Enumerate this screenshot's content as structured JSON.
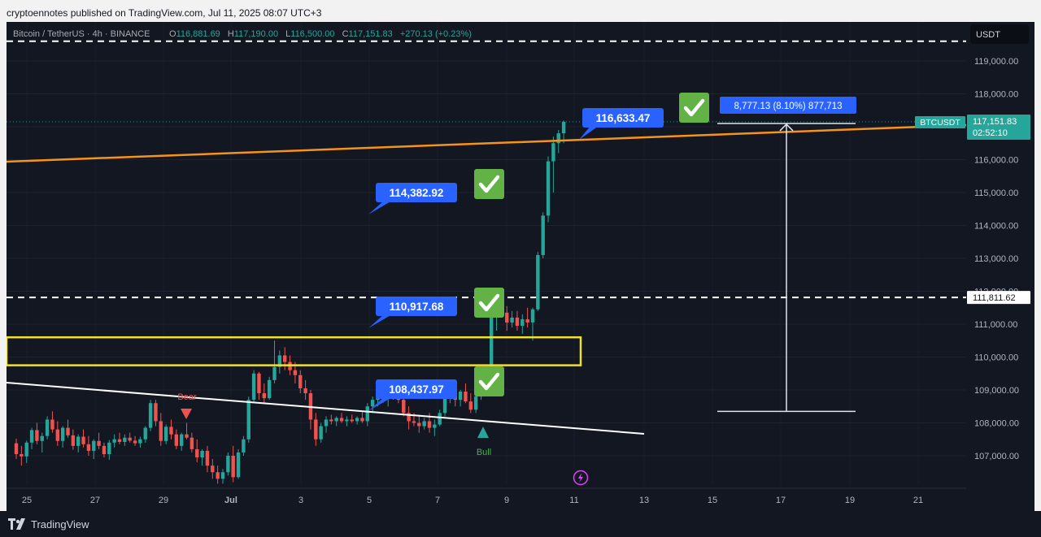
{
  "publisher_line": "cryptoennotes published on TradingView.com, Jul 11, 2025 08:07 UTC+3",
  "legend": {
    "symbol": "Bitcoin / TetherUS · 4h · BINANCE",
    "o_label": "O",
    "o_value": "116,881.69",
    "h_label": "H",
    "h_value": "117,190.00",
    "l_label": "L",
    "l_value": "116,500.00",
    "c_label": "C",
    "c_value": "117,151.83",
    "change": "+270.13 (+0.23%)"
  },
  "currency_button": "USDT",
  "price_axis": {
    "ticks": [
      "119,000.00",
      "118,000.00",
      "117,000.00",
      "116,000.00",
      "115,000.00",
      "114,000.00",
      "113,000.00",
      "112,000.00",
      "111,000.00",
      "110,000.00",
      "109,000.00",
      "108,000.00",
      "107,000.00"
    ],
    "tick_values": [
      119000,
      118000,
      117000,
      116000,
      115000,
      114000,
      113000,
      112000,
      111000,
      110000,
      109000,
      108000,
      107000
    ]
  },
  "time_axis": {
    "ticks": [
      "25",
      "27",
      "29",
      "Jul",
      "3",
      "5",
      "7",
      "9",
      "11",
      "13",
      "15",
      "17",
      "19",
      "21"
    ]
  },
  "price_tag": {
    "symbol": "BTCUSDT",
    "price": "117,151.83",
    "countdown": "02:52:10"
  },
  "level_tag": "111,811.62",
  "callouts": [
    {
      "label": "116,633.47"
    },
    {
      "label": "114,382.92"
    },
    {
      "label": "110,917.68"
    },
    {
      "label": "108,437.97"
    }
  ],
  "measure_label": "8,777.13 (8.10%) 877,713",
  "bear_label": "Bear",
  "bull_label": "Bull",
  "brand": "TradingView",
  "colors": {
    "background": "#131722",
    "up": "#26a69a",
    "down": "#ef5350",
    "trendline": "#f7931a",
    "zone": "#f0e130",
    "callout": "#2962ff",
    "check": "#63b245"
  },
  "icons": [
    "check-icon",
    "lightning-icon",
    "tradingview-logo-icon"
  ],
  "chart_data": {
    "type": "candlestick",
    "symbol": "BTCUSDT",
    "timeframe": "4h",
    "y_range": [
      106000,
      119800
    ],
    "dashed_levels": [
      119600,
      111811.62
    ],
    "zone": [
      109750,
      110600
    ],
    "annotated_prices": [
      116633.47,
      114382.92,
      110917.68,
      108437.97
    ],
    "measure": {
      "from": 108350,
      "to": 117100,
      "text": "8,777.13 (8.10%) 877,713"
    },
    "candles": [
      [
        107380,
        107520,
        106900,
        107050
      ],
      [
        107050,
        107300,
        106700,
        106980
      ],
      [
        106980,
        107460,
        106780,
        107400
      ],
      [
        107400,
        107850,
        107200,
        107780
      ],
      [
        107780,
        108000,
        107350,
        107450
      ],
      [
        107450,
        107700,
        107100,
        107600
      ],
      [
        107600,
        108200,
        107500,
        108100
      ],
      [
        108100,
        108350,
        107700,
        107800
      ],
      [
        107800,
        108050,
        107300,
        107450
      ],
      [
        107450,
        107900,
        107250,
        107850
      ],
      [
        107850,
        108100,
        107550,
        107620
      ],
      [
        107620,
        107800,
        107180,
        107300
      ],
      [
        107300,
        107650,
        107100,
        107580
      ],
      [
        107580,
        107800,
        107250,
        107350
      ],
      [
        107350,
        107600,
        107000,
        107150
      ],
      [
        107150,
        107500,
        106900,
        107450
      ],
      [
        107450,
        107700,
        107200,
        107300
      ],
      [
        107300,
        107400,
        106950,
        107050
      ],
      [
        107050,
        107480,
        106880,
        107400
      ],
      [
        107400,
        107650,
        107250,
        107500
      ],
      [
        107500,
        107700,
        107350,
        107420
      ],
      [
        107420,
        107650,
        107300,
        107550
      ],
      [
        107550,
        107700,
        107400,
        107460
      ],
      [
        107460,
        107600,
        107300,
        107380
      ],
      [
        107380,
        107580,
        107250,
        107500
      ],
      [
        107500,
        107900,
        107400,
        107850
      ],
      [
        107850,
        108700,
        107750,
        108600
      ],
      [
        108600,
        108700,
        107900,
        108050
      ],
      [
        108050,
        108300,
        107300,
        107450
      ],
      [
        107450,
        107950,
        107350,
        107880
      ],
      [
        107880,
        108100,
        107500,
        107650
      ],
      [
        107650,
        107800,
        107200,
        107300
      ],
      [
        107300,
        107700,
        107150,
        107650
      ],
      [
        107650,
        108000,
        107500,
        107550
      ],
      [
        107550,
        107700,
        107100,
        107200
      ],
      [
        107200,
        107500,
        106800,
        106950
      ],
      [
        106950,
        107200,
        106700,
        107150
      ],
      [
        107150,
        107300,
        106500,
        106700
      ],
      [
        106700,
        106900,
        106300,
        106500
      ],
      [
        106500,
        106700,
        106150,
        106300
      ],
      [
        106300,
        106600,
        106150,
        106500
      ],
      [
        106500,
        107100,
        106400,
        107000
      ],
      [
        107000,
        107300,
        106200,
        106350
      ],
      [
        106350,
        107200,
        106300,
        107100
      ],
      [
        107100,
        107600,
        107000,
        107500
      ],
      [
        107500,
        108800,
        107400,
        108700
      ],
      [
        108700,
        109600,
        108600,
        109500
      ],
      [
        109500,
        109550,
        108700,
        108900
      ],
      [
        108900,
        109200,
        108600,
        108750
      ],
      [
        108750,
        109400,
        108700,
        109300
      ],
      [
        109300,
        110500,
        109200,
        109700
      ],
      [
        109700,
        110200,
        109500,
        110050
      ],
      [
        110050,
        110300,
        109600,
        109850
      ],
      [
        109850,
        110050,
        109450,
        109600
      ],
      [
        109600,
        109850,
        109200,
        109450
      ],
      [
        109450,
        109600,
        108900,
        109050
      ],
      [
        109050,
        109300,
        108700,
        108900
      ],
      [
        108900,
        109000,
        107800,
        108100
      ],
      [
        108100,
        108300,
        107300,
        107500
      ],
      [
        107500,
        108000,
        107400,
        107900
      ],
      [
        107900,
        108200,
        107700,
        108100
      ],
      [
        108100,
        108250,
        107950,
        108050
      ],
      [
        108050,
        108200,
        107900,
        108150
      ],
      [
        108150,
        108300,
        108000,
        108050
      ],
      [
        108050,
        108200,
        107900,
        108100
      ],
      [
        108100,
        108250,
        108000,
        108050
      ],
      [
        108050,
        108200,
        107950,
        108150
      ],
      [
        108150,
        108350,
        108000,
        108050
      ],
      [
        108050,
        108600,
        107900,
        108500
      ],
      [
        108500,
        108800,
        108300,
        108700
      ],
      [
        108700,
        109000,
        108500,
        108850
      ],
      [
        108850,
        109100,
        108600,
        108750
      ],
      [
        108750,
        109000,
        108500,
        108900
      ],
      [
        108900,
        109200,
        108700,
        109050
      ],
      [
        109050,
        109150,
        108600,
        108700
      ],
      [
        108700,
        108850,
        108200,
        108300
      ],
      [
        108300,
        108500,
        107800,
        108050
      ],
      [
        108050,
        108300,
        107900,
        108000
      ],
      [
        108000,
        108250,
        107700,
        107900
      ],
      [
        107900,
        108150,
        107800,
        108050
      ],
      [
        108050,
        108300,
        107700,
        107850
      ],
      [
        107850,
        108100,
        107600,
        107950
      ],
      [
        107950,
        108400,
        107900,
        108300
      ],
      [
        108300,
        108900,
        108200,
        108800
      ],
      [
        108800,
        109100,
        108600,
        108900
      ],
      [
        108900,
        109150,
        108500,
        108700
      ],
      [
        108700,
        109000,
        108500,
        108950
      ],
      [
        108950,
        109200,
        108600,
        108650
      ],
      [
        108650,
        108900,
        108300,
        108400
      ],
      [
        108400,
        108900,
        108300,
        108800
      ],
      [
        108800,
        109300,
        108700,
        109200
      ],
      [
        109200,
        109350,
        108950,
        109050
      ],
      [
        109050,
        111300,
        108950,
        111200
      ],
      [
        111200,
        111800,
        110800,
        111700
      ],
      [
        111700,
        111850,
        111200,
        111350
      ],
      [
        111350,
        111550,
        110800,
        111050
      ],
      [
        111050,
        111400,
        110900,
        111200
      ],
      [
        111200,
        111400,
        110800,
        110950
      ],
      [
        110950,
        111300,
        110700,
        111150
      ],
      [
        111150,
        111500,
        110900,
        111050
      ],
      [
        111050,
        111500,
        110500,
        111450
      ],
      [
        111450,
        113200,
        111400,
        113100
      ],
      [
        113100,
        114400,
        113000,
        114300
      ],
      [
        114300,
        116100,
        114100,
        115950
      ],
      [
        115950,
        116700,
        115000,
        116500
      ],
      [
        116500,
        116900,
        116200,
        116800
      ],
      [
        116800,
        117190,
        116500,
        117151
      ]
    ]
  }
}
